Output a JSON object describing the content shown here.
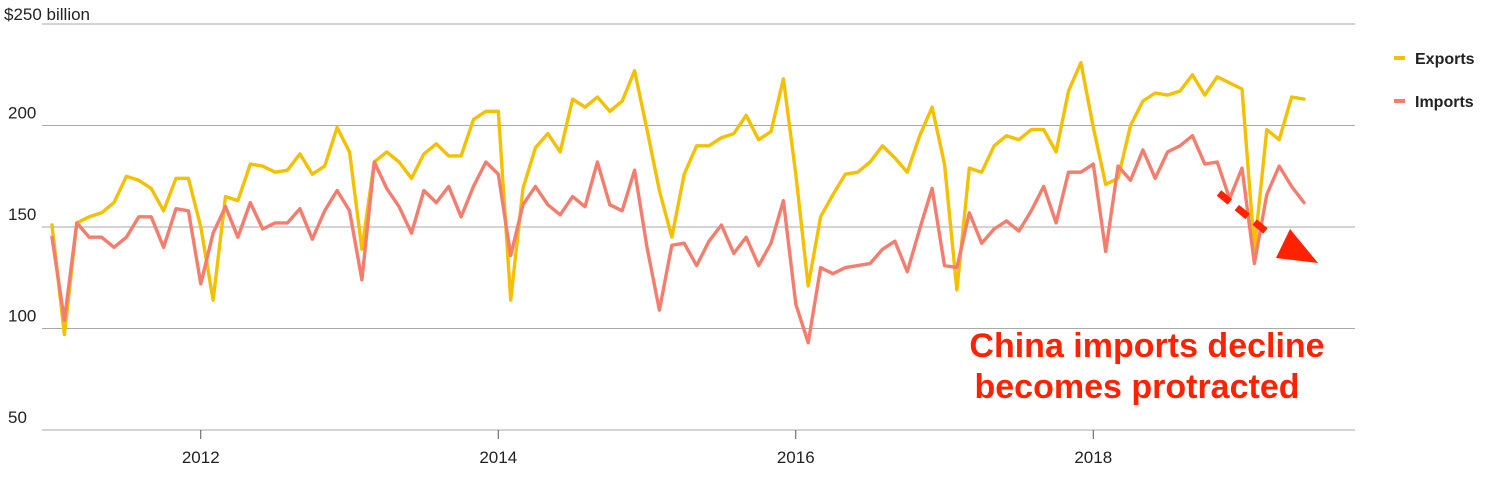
{
  "chart_data": {
    "type": "line",
    "ylabel": "$250 billion",
    "ylim": [
      50,
      250
    ],
    "xlim": [
      "2011-01",
      "2019-06"
    ],
    "yticks": [
      {
        "value": 200,
        "label": "200"
      },
      {
        "value": 150,
        "label": "150"
      },
      {
        "value": 100,
        "label": "100"
      },
      {
        "value": 50,
        "label": "50"
      }
    ],
    "xticks": [
      {
        "value": "2012-01",
        "label": "2012"
      },
      {
        "value": "2014-01",
        "label": "2014"
      },
      {
        "value": "2016-01",
        "label": "2016"
      },
      {
        "value": "2018-01",
        "label": "2018"
      }
    ],
    "grid": true,
    "legend_position": "top-right",
    "x": [
      "2011-01",
      "2011-02",
      "2011-03",
      "2011-04",
      "2011-05",
      "2011-06",
      "2011-07",
      "2011-08",
      "2011-09",
      "2011-10",
      "2011-11",
      "2011-12",
      "2012-01",
      "2012-02",
      "2012-03",
      "2012-04",
      "2012-05",
      "2012-06",
      "2012-07",
      "2012-08",
      "2012-09",
      "2012-10",
      "2012-11",
      "2012-12",
      "2013-01",
      "2013-02",
      "2013-03",
      "2013-04",
      "2013-05",
      "2013-06",
      "2013-07",
      "2013-08",
      "2013-09",
      "2013-10",
      "2013-11",
      "2013-12",
      "2014-01",
      "2014-02",
      "2014-03",
      "2014-04",
      "2014-05",
      "2014-06",
      "2014-07",
      "2014-08",
      "2014-09",
      "2014-10",
      "2014-11",
      "2014-12",
      "2015-01",
      "2015-02",
      "2015-03",
      "2015-04",
      "2015-05",
      "2015-06",
      "2015-07",
      "2015-08",
      "2015-09",
      "2015-10",
      "2015-11",
      "2015-12",
      "2016-01",
      "2016-02",
      "2016-03",
      "2016-04",
      "2016-05",
      "2016-06",
      "2016-07",
      "2016-08",
      "2016-09",
      "2016-10",
      "2016-11",
      "2016-12",
      "2017-01",
      "2017-02",
      "2017-03",
      "2017-04",
      "2017-05",
      "2017-06",
      "2017-07",
      "2017-08",
      "2017-09",
      "2017-10",
      "2017-11",
      "2017-12",
      "2018-01",
      "2018-02",
      "2018-03",
      "2018-04",
      "2018-05",
      "2018-06",
      "2018-07",
      "2018-08",
      "2018-09",
      "2018-10",
      "2018-11",
      "2018-12",
      "2019-01",
      "2019-02",
      "2019-03",
      "2019-04",
      "2019-05",
      "2019-06"
    ],
    "series": [
      {
        "name": "Exports",
        "color": "#f5c000",
        "values": [
          151,
          97,
          152,
          155,
          157,
          162,
          175,
          173,
          169,
          158,
          174,
          174,
          150,
          114,
          165,
          163,
          181,
          180,
          177,
          178,
          186,
          176,
          180,
          199,
          187,
          139,
          182,
          187,
          182,
          174,
          186,
          191,
          185,
          185,
          203,
          207,
          207,
          114,
          169,
          189,
          196,
          187,
          213,
          209,
          214,
          207,
          212,
          227,
          198,
          168,
          145,
          176,
          190,
          190,
          194,
          196,
          205,
          193,
          197,
          223,
          176,
          121,
          155,
          166,
          176,
          177,
          182,
          190,
          184,
          177,
          195,
          209,
          181,
          119,
          179,
          177,
          190,
          195,
          193,
          198,
          198,
          187,
          217,
          231,
          199,
          171,
          174,
          200,
          212,
          216,
          215,
          217,
          225,
          215,
          224,
          221,
          218,
          139,
          198,
          193,
          214,
          213
        ]
      },
      {
        "name": "Imports",
        "color": "#f47d6e",
        "values": [
          145,
          104,
          152,
          145,
          145,
          140,
          145,
          155,
          155,
          140,
          159,
          158,
          122,
          147,
          160,
          145,
          162,
          149,
          152,
          152,
          159,
          144,
          158,
          168,
          158,
          124,
          182,
          169,
          160,
          147,
          168,
          162,
          170,
          155,
          170,
          182,
          176,
          136,
          161,
          170,
          161,
          156,
          165,
          160,
          182,
          161,
          158,
          178,
          140,
          109,
          141,
          142,
          131,
          143,
          151,
          137,
          145,
          131,
          142,
          163,
          112,
          93,
          130,
          127,
          130,
          131,
          132,
          139,
          143,
          128,
          149,
          169,
          131,
          130,
          157,
          142,
          149,
          153,
          148,
          158,
          170,
          152,
          177,
          177,
          181,
          138,
          180,
          173,
          188,
          174,
          187,
          190,
          195,
          181,
          182,
          164,
          179,
          132,
          166,
          180,
          170,
          162
        ]
      }
    ],
    "annotations": [
      {
        "text_lines": [
          "China imports decline",
          "becomes protracted"
        ],
        "color": "#ff2200"
      }
    ]
  }
}
